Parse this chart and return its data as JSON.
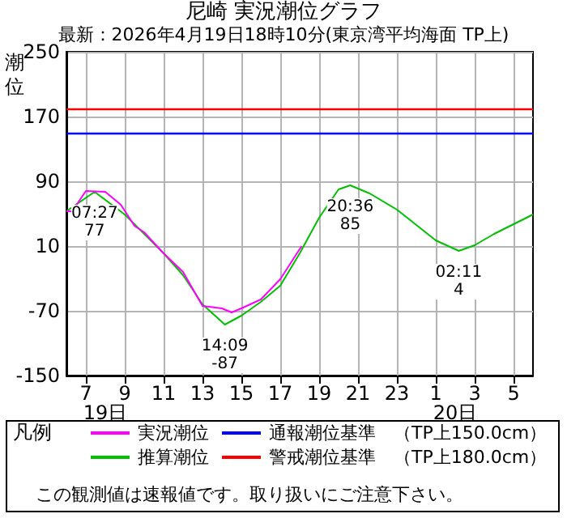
{
  "chart_data": {
    "type": "line",
    "title": "尼崎 実況潮位グラフ",
    "subtitle": "最新：2026年4月19日18時10分(東京湾平均海面 TP上)",
    "ylabel": "潮位",
    "legend_title": "凡例",
    "xlim": [
      "2026-04-19T06:00",
      "2026-04-20T06:00"
    ],
    "xticks": [
      {
        "value": "2026-04-19T07:00",
        "label": "7"
      },
      {
        "value": "2026-04-19T09:00",
        "label": "9"
      },
      {
        "value": "2026-04-19T11:00",
        "label": "11"
      },
      {
        "value": "2026-04-19T13:00",
        "label": "13"
      },
      {
        "value": "2026-04-19T15:00",
        "label": "15"
      },
      {
        "value": "2026-04-19T17:00",
        "label": "17"
      },
      {
        "value": "2026-04-19T19:00",
        "label": "19"
      },
      {
        "value": "2026-04-19T21:00",
        "label": "21"
      },
      {
        "value": "2026-04-19T23:00",
        "label": "23"
      },
      {
        "value": "2026-04-20T01:00",
        "label": "1"
      },
      {
        "value": "2026-04-20T03:00",
        "label": "3"
      },
      {
        "value": "2026-04-20T05:00",
        "label": "5"
      }
    ],
    "ylim": [
      -150,
      250
    ],
    "yticks": [
      -150,
      -70,
      10,
      90,
      170,
      250
    ],
    "grid": true,
    "legend": "bottom",
    "marker": "none",
    "line_style": "solid",
    "series": [
      {
        "name": "実況潮位",
        "color": "#ff00ff",
        "x": [
          "2026-04-19T06:00",
          "2026-04-19T06:18",
          "2026-04-19T07:00",
          "2026-04-19T08:00",
          "2026-04-19T08:48",
          "2026-04-19T09:30",
          "2026-04-19T10:00",
          "2026-04-19T11:00",
          "2026-04-19T12:00",
          "2026-04-19T13:00",
          "2026-04-19T14:00",
          "2026-04-19T14:30",
          "2026-04-19T15:00",
          "2026-04-19T16:00",
          "2026-04-19T17:00",
          "2026-04-19T18:06"
        ],
        "values": [
          53,
          53,
          78,
          77,
          61,
          35,
          27,
          1,
          -22,
          -64,
          -67,
          -72,
          -67,
          -56,
          -31,
          10
        ]
      },
      {
        "name": "推算潮位",
        "color": "#00c000",
        "x": [
          "2026-04-19T06:00",
          "2026-04-19T07:27",
          "2026-04-19T09:00",
          "2026-04-19T10:00",
          "2026-04-19T11:00",
          "2026-04-19T12:00",
          "2026-04-19T13:00",
          "2026-04-19T14:09",
          "2026-04-19T15:00",
          "2026-04-19T16:00",
          "2026-04-19T17:00",
          "2026-04-19T18:00",
          "2026-04-19T19:00",
          "2026-04-19T20:00",
          "2026-04-19T20:36",
          "2026-04-19T21:36",
          "2026-04-19T23:00",
          "2026-04-20T01:00",
          "2026-04-20T02:11",
          "2026-04-20T03:00",
          "2026-04-20T04:00",
          "2026-04-20T05:00",
          "2026-04-20T06:00"
        ],
        "values": [
          53,
          77,
          49,
          25,
          1,
          -26,
          -62,
          -87,
          -76,
          -59,
          -39,
          1,
          45,
          80,
          85,
          75,
          55,
          17,
          4,
          11,
          25,
          37,
          49
        ]
      }
    ],
    "ref_lines": [
      {
        "axis": "y",
        "value": 150,
        "label": "通報潮位基準　（TP上150.0cm）",
        "color": "#0000ff"
      },
      {
        "axis": "y",
        "value": 180,
        "label": "警戒潮位基準　（TP上180.0cm）",
        "color": "#ff0000"
      }
    ],
    "annotations": [
      {
        "text": "07:27\n77",
        "x": "2026-04-19T07:27",
        "y": 77
      },
      {
        "text": "14:09\n-87",
        "x": "2026-04-19T14:09",
        "y": -87
      },
      {
        "text": "20:36\n85",
        "x": "2026-04-19T20:36",
        "y": 85
      },
      {
        "text": "02:11\n4",
        "x": "2026-04-20T02:11",
        "y": 4
      },
      "19日",
      "20日",
      "この観測値は速報値です。取り扱いにご注意下さい。"
    ]
  }
}
